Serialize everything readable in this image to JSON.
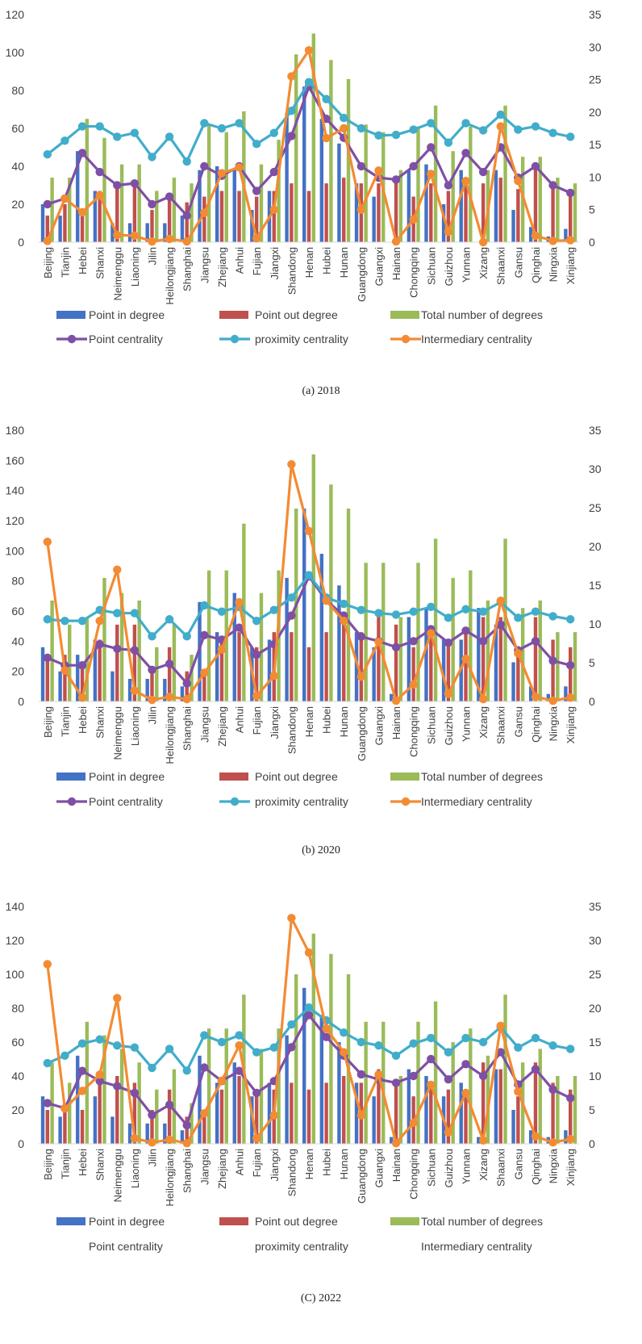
{
  "chart_data": [
    {
      "type": "bar+line",
      "caption": "(a) 2018",
      "categories": [
        "Beijing",
        "Tianjin",
        "Hebei",
        "Shanxi",
        "Neimenggu",
        "Liaoning",
        "Jilin",
        "Heilongjiang",
        "Shanghai",
        "Jiangsu",
        "Zhejiang",
        "Anhui",
        "Fujian",
        "Jiangxi",
        "Shandong",
        "Henan",
        "Hubei",
        "Hunan",
        "Guangdong",
        "Guangxi",
        "Hainan",
        "Chongqing",
        "Sichuan",
        "Guizhou",
        "Yunnan",
        "Xizang",
        "Shaanxi",
        "Gansu",
        "Qinghai",
        "Ningxia",
        "Xinjiang"
      ],
      "left_axis": {
        "min": 0,
        "max": 120,
        "ticks": [
          "0",
          "20",
          "40",
          "60",
          "80",
          "100",
          "120"
        ]
      },
      "right_axis": {
        "min": 0,
        "max": 35,
        "ticks": [
          "0",
          "5",
          "10",
          "15",
          "20",
          "25",
          "30",
          "35"
        ]
      },
      "series": [
        {
          "name": "Point in degree",
          "kind": "bar",
          "axis": "left",
          "color": "#4472C4",
          "values": [
            20,
            14,
            48,
            27,
            10,
            10,
            10,
            10,
            14,
            38,
            40,
            38,
            17,
            27,
            68,
            82,
            65,
            52,
            31,
            24,
            0,
            38,
            41,
            20,
            38,
            0,
            38,
            17,
            8,
            3,
            7
          ]
        },
        {
          "name": "Point out degree",
          "kind": "bar",
          "axis": "left",
          "color": "#C0504D",
          "values": [
            14,
            20,
            17,
            27,
            31,
            31,
            17,
            24,
            21,
            24,
            27,
            27,
            24,
            27,
            31,
            27,
            31,
            34,
            31,
            31,
            31,
            24,
            31,
            27,
            30,
            31,
            34,
            28,
            41,
            31,
            24
          ]
        },
        {
          "name": "Total number of degrees",
          "kind": "bar",
          "axis": "left",
          "color": "#9BBB59",
          "values": [
            34,
            34,
            65,
            55,
            41,
            41,
            27,
            34,
            31,
            62,
            58,
            69,
            41,
            54,
            99,
            110,
            96,
            86,
            62,
            58,
            38,
            61,
            72,
            48,
            61,
            38,
            72,
            45,
            45,
            34,
            31
          ]
        },
        {
          "name": "Point centrality",
          "kind": "line",
          "axis": "left",
          "color": "#7F4FA5",
          "values": [
            20,
            23,
            47,
            37,
            30,
            31,
            20,
            24,
            14,
            40,
            35,
            40,
            27,
            37,
            56,
            82,
            65,
            55,
            40,
            34,
            33,
            40,
            50,
            30,
            47,
            37,
            50,
            34,
            40,
            30,
            26
          ]
        },
        {
          "name": "proximity centrality",
          "kind": "line",
          "axis": "right",
          "color": "#41ADCA",
          "values": [
            13.5,
            15.6,
            17.8,
            17.8,
            16.2,
            16.8,
            13.1,
            16.2,
            12.4,
            18.3,
            17.5,
            18.3,
            15.1,
            16.8,
            20.2,
            24.6,
            22.0,
            19.1,
            17.5,
            16.4,
            16.5,
            17.3,
            18.3,
            15.3,
            18.3,
            17.2,
            19.6,
            17.3,
            17.8,
            16.8,
            16.2
          ]
        },
        {
          "name": "Intermediary centrality",
          "kind": "line",
          "axis": "right",
          "color": "#F38B33",
          "values": [
            0.2,
            6.7,
            4.6,
            7.2,
            1.1,
            1.0,
            0.1,
            0.5,
            0.1,
            4.5,
            10.6,
            11.5,
            0.6,
            5.0,
            25.5,
            29.5,
            16.0,
            17.5,
            5.0,
            11.0,
            0.1,
            3.5,
            10.5,
            1.6,
            9.4,
            0.0,
            17.8,
            9.4,
            1.0,
            0.2,
            0.3
          ]
        }
      ],
      "legend": [
        "Point in degree",
        "Point out degree",
        "Total number of degrees",
        "Point centrality",
        "proximity centrality",
        "Intermediary centrality"
      ]
    },
    {
      "type": "bar+line",
      "caption": "(b) 2020",
      "categories": [
        "Beijing",
        "Tianjin",
        "Hebei",
        "Shanxi",
        "Neimenggu",
        "Liaoning",
        "Jilin",
        "Heilongjiang",
        "Shanghai",
        "Jiangsu",
        "Zhejiang",
        "Anhui",
        "Fujian",
        "Jiangxi",
        "Shandong",
        "Henan",
        "Hubei",
        "Hunan",
        "Guangdong",
        "Guangxi",
        "Hainan",
        "Chongqing",
        "Sichuan",
        "Guizhou",
        "Yunnan",
        "Xizang",
        "Shaanxi",
        "Gansu",
        "Qinghai",
        "Ningxia",
        "Xinjiang"
      ],
      "left_axis": {
        "min": 0,
        "max": 180,
        "ticks": [
          "0",
          "20",
          "40",
          "60",
          "80",
          "100",
          "120",
          "140",
          "160",
          "180"
        ]
      },
      "right_axis": {
        "min": 0,
        "max": 35,
        "ticks": [
          "0",
          "5",
          "10",
          "15",
          "20",
          "25",
          "30",
          "35"
        ]
      },
      "series": [
        {
          "name": "Point in degree",
          "kind": "bar",
          "axis": "left",
          "color": "#4472C4",
          "values": [
            36,
            20,
            31,
            41,
            20,
            15,
            15,
            15,
            10,
            66,
            46,
            72,
            36,
            41,
            82,
            128,
            98,
            77,
            46,
            36,
            5,
            56,
            62,
            41,
            41,
            62,
            51,
            26,
            10,
            5,
            10
          ]
        },
        {
          "name": "Point out degree",
          "kind": "bar",
          "axis": "left",
          "color": "#C0504D",
          "values": [
            31,
            31,
            25,
            41,
            51,
            51,
            20,
            36,
            20,
            20,
            41,
            46,
            36,
            46,
            46,
            36,
            46,
            51,
            46,
            56,
            51,
            36,
            46,
            41,
            46,
            56,
            56,
            36,
            56,
            41,
            36
          ]
        },
        {
          "name": "Total number of degrees",
          "kind": "bar",
          "axis": "left",
          "color": "#9BBB59",
          "values": [
            67,
            51,
            56,
            82,
            72,
            67,
            36,
            51,
            31,
            87,
            87,
            118,
            72,
            87,
            128,
            164,
            144,
            128,
            92,
            92,
            56,
            92,
            108,
            82,
            87,
            67,
            108,
            62,
            67,
            46,
            46
          ]
        },
        {
          "name": "Point centrality",
          "kind": "line",
          "axis": "left",
          "color": "#7F4FA5",
          "values": [
            29,
            24,
            24,
            38,
            35,
            34,
            21,
            25,
            12,
            44,
            41,
            49,
            31,
            38,
            57,
            83,
            67,
            57,
            43,
            40,
            36,
            40,
            48,
            39,
            47,
            40,
            51,
            34,
            40,
            27,
            24
          ]
        },
        {
          "name": "proximity centrality",
          "kind": "line",
          "axis": "right",
          "color": "#41ADCA",
          "values": [
            10.6,
            10.4,
            10.4,
            11.8,
            11.4,
            11.4,
            8.4,
            10.6,
            8.4,
            12.4,
            11.6,
            12.2,
            10.4,
            11.8,
            13.4,
            16.3,
            13.4,
            12.6,
            11.8,
            11.4,
            11.2,
            11.6,
            12.2,
            10.8,
            11.9,
            11.6,
            12.8,
            10.8,
            11.6,
            11.0,
            10.6
          ]
        },
        {
          "name": "Intermediary centrality",
          "kind": "line",
          "axis": "right",
          "color": "#F38B33",
          "values": [
            20.6,
            4.0,
            0.5,
            10.4,
            17.0,
            1.4,
            0.2,
            0.6,
            0.3,
            3.7,
            6.7,
            12.8,
            0.7,
            3.3,
            30.6,
            22.0,
            13.0,
            10.4,
            3.2,
            7.7,
            0.1,
            2.2,
            8.8,
            1.0,
            5.5,
            0.3,
            13.0,
            6.2,
            0.6,
            0.1,
            0.5
          ]
        }
      ],
      "legend": [
        "Point in degree",
        "Point out degree",
        "Total number of degrees",
        "Point centrality",
        "proximity centrality",
        "Intermediary centrality"
      ]
    },
    {
      "type": "bar+line",
      "caption": "(C) 2022",
      "categories": [
        "Beijing",
        "Tianjin",
        "Hebei",
        "Shanxi",
        "Neimenggu",
        "Liaoning",
        "Jilin",
        "Heilongjiang",
        "Shanghai",
        "Jiangsu",
        "Zhejiang",
        "Anhui",
        "Fujian",
        "Jiangxi",
        "Shandong",
        "Henan",
        "Hubei",
        "Hunan",
        "Guangdong",
        "Guangxi",
        "Hainan",
        "Chongqing",
        "Sichuan",
        "Guizhou",
        "Yunnan",
        "Xizang",
        "Shaanxi",
        "Gansu",
        "Qinghai",
        "Ningxia",
        "Xinjiang"
      ],
      "left_axis": {
        "min": 0,
        "max": 140,
        "ticks": [
          "0",
          "20",
          "40",
          "60",
          "80",
          "100",
          "120",
          "140"
        ]
      },
      "right_axis": {
        "min": 0,
        "max": 35,
        "ticks": [
          "0",
          "5",
          "10",
          "15",
          "20",
          "25",
          "30",
          "35"
        ]
      },
      "series": [
        {
          "name": "Point in degree",
          "kind": "bar",
          "axis": "left",
          "color": "#4472C4",
          "values": [
            28,
            16,
            52,
            28,
            16,
            12,
            12,
            12,
            8,
            52,
            36,
            48,
            28,
            36,
            64,
            92,
            76,
            60,
            36,
            28,
            4,
            44,
            40,
            28,
            36,
            4,
            44,
            20,
            8,
            4,
            8
          ]
        },
        {
          "name": "Point out degree",
          "kind": "bar",
          "axis": "left",
          "color": "#C0504D",
          "values": [
            20,
            20,
            20,
            36,
            40,
            36,
            20,
            32,
            16,
            16,
            32,
            40,
            28,
            32,
            36,
            32,
            36,
            40,
            36,
            44,
            36,
            28,
            36,
            32,
            32,
            48,
            44,
            28,
            48,
            36,
            32
          ]
        },
        {
          "name": "Total number of degrees",
          "kind": "bar",
          "axis": "left",
          "color": "#9BBB59",
          "values": [
            48,
            36,
            72,
            64,
            56,
            48,
            32,
            44,
            24,
            68,
            68,
            88,
            56,
            68,
            100,
            124,
            112,
            100,
            72,
            72,
            40,
            72,
            84,
            60,
            68,
            52,
            88,
            48,
            56,
            40,
            40
          ]
        },
        {
          "name": "Point centrality",
          "kind": "line",
          "axis": "left",
          "color": "#7F4FA5",
          "values": [
            24,
            21,
            43,
            37,
            34,
            30,
            17,
            23,
            11,
            45,
            37,
            43,
            30,
            37,
            57,
            76,
            63,
            52,
            41,
            38,
            36,
            40,
            50,
            38,
            47,
            40,
            54,
            35,
            44,
            32,
            27
          ]
        },
        {
          "name": "proximity centrality",
          "kind": "line",
          "axis": "right",
          "color": "#41ADCA",
          "values": [
            11.9,
            13.0,
            14.8,
            15.4,
            14.5,
            14.2,
            11.2,
            14.0,
            10.8,
            16.0,
            15.0,
            16.0,
            13.5,
            14.2,
            17.6,
            20.1,
            18.2,
            16.4,
            15.0,
            14.5,
            13.0,
            14.8,
            15.6,
            13.5,
            15.6,
            15.0,
            17.2,
            14.2,
            15.6,
            14.5,
            14.0
          ]
        },
        {
          "name": "Intermediary centrality",
          "kind": "line",
          "axis": "right",
          "color": "#F38B33",
          "values": [
            26.5,
            5.2,
            7.8,
            10.2,
            21.5,
            0.8,
            0.2,
            0.6,
            0.1,
            4.5,
            9.3,
            14.5,
            0.8,
            4.2,
            33.3,
            28.2,
            17.0,
            13.5,
            4.2,
            10.2,
            0.1,
            3.1,
            8.7,
            1.7,
            7.5,
            0.5,
            17.4,
            7.7,
            1.1,
            0.2,
            0.7
          ]
        }
      ],
      "legend": [
        "Point in degree",
        "Point out degree",
        "Total number of degrees",
        "Point centrality",
        "proximity centrality",
        "Intermediary centrality"
      ]
    }
  ]
}
